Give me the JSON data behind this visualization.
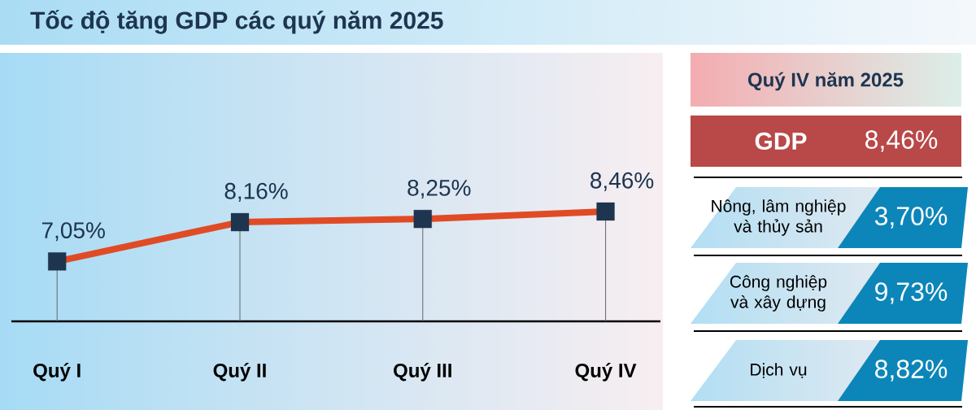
{
  "chart_data": [
    {
      "type": "line",
      "title": "Tốc độ tăng GDP các quý năm 2025",
      "categories": [
        "Quý I",
        "Quý II",
        "Quý III",
        "Quý IV"
      ],
      "series": [
        {
          "color": "#e04b25",
          "values": [
            7.05,
            8.16,
            8.25,
            8.46
          ],
          "value_labels": [
            "7,05%",
            "8,16%",
            "8,25%",
            "8,46%"
          ]
        }
      ],
      "tick_labels": "x",
      "marker": "square",
      "grid": "x"
    },
    {
      "type": "other",
      "title": "Quý IV năm 2025",
      "categories": [
        "GDP",
        "Nông, lâm nghiệp và thủy sản",
        "Công nghiệp và xây dựng",
        "Dịch vụ"
      ],
      "value_labels": [
        "8,46%",
        "3,70%",
        "9,73%",
        "8,82%"
      ],
      "colors": [
        "#b94848",
        "#0c86b9",
        "#0c86b9",
        "#0c86b9"
      ]
    }
  ]
}
